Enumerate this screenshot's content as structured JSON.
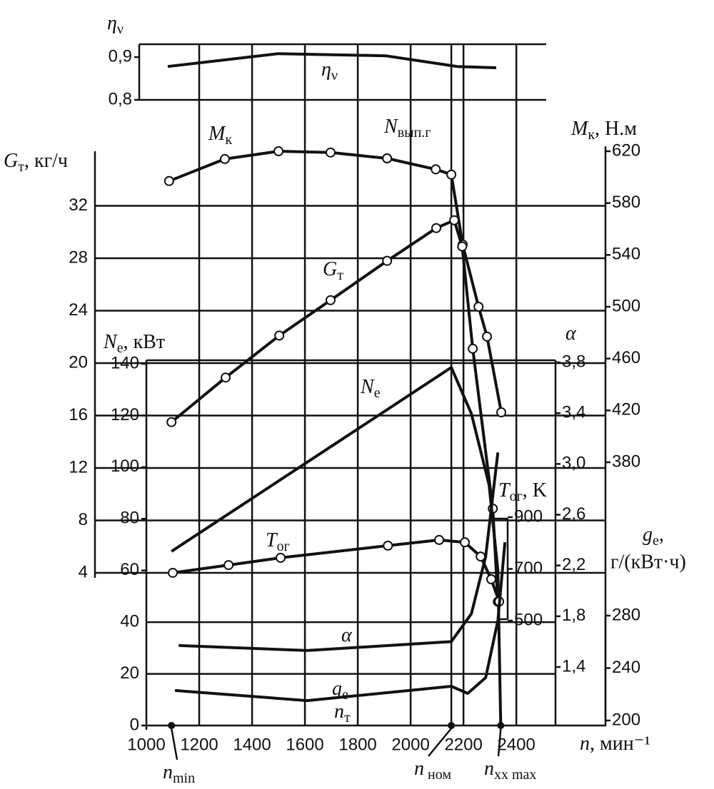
{
  "chart_data": {
    "type": "line",
    "x_label": "n, мин⁻¹",
    "xlim": [
      1000,
      2740
    ],
    "xticks": [
      1000,
      1200,
      1400,
      1600,
      1800,
      2000,
      2200,
      2400
    ],
    "grid": true,
    "axes": {
      "eta": {
        "label": "ην",
        "ylim": [
          0.8,
          0.9
        ],
        "yticks": [
          {
            "value": 0.8,
            "label": "0,8"
          },
          {
            "value": 0.9,
            "label": "0,9"
          }
        ]
      },
      "G": {
        "label": "Gт, кг/ч",
        "ylim": [
          4,
          36
        ],
        "yticks": [
          4,
          8,
          12,
          16,
          20,
          24,
          28,
          32
        ]
      },
      "Ne": {
        "label": "Ne, кВт",
        "ylim": [
          0,
          140
        ],
        "yticks": [
          0,
          20,
          40,
          60,
          80,
          100,
          120,
          140
        ]
      },
      "M": {
        "label": "Mк, Н.м",
        "ylim": [
          380,
          620
        ],
        "yticks": [
          380,
          420,
          460,
          500,
          540,
          580,
          620
        ]
      },
      "alpha": {
        "label": "α",
        "ylim": [
          1.4,
          3.8
        ],
        "yticks": [
          {
            "value": 1.4,
            "label": "1,4"
          },
          {
            "value": 1.8,
            "label": "1,8"
          },
          {
            "value": 2.2,
            "label": "2,2"
          },
          {
            "value": 2.6,
            "label": "2,6"
          },
          {
            "value": 3.0,
            "label": "3,0"
          },
          {
            "value": 3.4,
            "label": "3,4"
          },
          {
            "value": 3.8,
            "label": "3,8"
          }
        ]
      },
      "T": {
        "label": "Tог, K",
        "ylim": [
          500,
          900
        ],
        "yticks": [
          500,
          700,
          900
        ]
      },
      "ge": {
        "label": [
          "ge,",
          "г/(кВт·ч)"
        ],
        "ylim": [
          200,
          280
        ],
        "yticks": [
          200,
          240,
          280
        ]
      }
    },
    "series": [
      {
        "name": "Mк",
        "axis": "M",
        "color": "#111111",
        "markers": true,
        "x": [
          1086,
          1297,
          1500,
          1697,
          1911,
          2095,
          2154,
          2197,
          2257,
          2289,
          2343
        ],
        "values": [
          597,
          614,
          620,
          619,
          614.5,
          606,
          602,
          548,
          500,
          477,
          418.5
        ]
      },
      {
        "name": "Gт",
        "axis": "G",
        "color": "#111111",
        "markers": true,
        "x": [
          1095,
          1300,
          1503,
          1697,
          1911,
          2097,
          2165,
          2195,
          2235,
          2311,
          2330
        ],
        "values": [
          15.5,
          18.9,
          22.1,
          24.8,
          27.8,
          30.3,
          30.9,
          28.9,
          21.1,
          8.9,
          1.8
        ]
      },
      {
        "name": "Ne",
        "axis": "Ne",
        "color": "#111111",
        "markers": false,
        "x": [
          1095,
          2154,
          2230,
          2297,
          2330,
          2341
        ],
        "values": [
          67.4,
          138.6,
          120.7,
          93.1,
          60,
          0
        ]
      },
      {
        "name": "Tог",
        "axis": "T",
        "color": "#111111",
        "markers": true,
        "x": [
          1100,
          1311,
          1508,
          1914,
          2108,
          2205,
          2265,
          2305,
          2335
        ],
        "values": [
          685,
          715,
          743,
          790,
          812,
          803,
          748,
          660,
          574
        ]
      },
      {
        "name": "α",
        "axis": "alpha",
        "color": "#111111",
        "markers": false,
        "x": [
          1122,
          1608,
          2154,
          2230,
          2284,
          2330
        ],
        "values": [
          1.57,
          1.53,
          1.6,
          1.82,
          2.27,
          3.09
        ]
      },
      {
        "name": "ge",
        "axis": "ge",
        "color": "#111111",
        "markers": false,
        "x": [
          1108,
          1608,
          2154,
          2216,
          2284,
          2330,
          2357
        ],
        "values": [
          222.9,
          215.2,
          226.1,
          220.7,
          232.7,
          276.2,
          336
        ]
      },
      {
        "name": "ην",
        "axis": "eta",
        "color": "#111111",
        "markers": false,
        "x": [
          1081,
          1500,
          1905,
          2176,
          2324
        ],
        "values": [
          0.878,
          0.908,
          0.903,
          0.878,
          0.875
        ]
      }
    ],
    "regulator": {
      "label": "Nвып.г",
      "value": 2154
    },
    "x_markers": [
      {
        "name": "nmin",
        "value": 1095
      },
      {
        "name": "n ном",
        "value": 2154
      },
      {
        "name": "nxx max",
        "value": 2341
      }
    ],
    "annotations": [
      "nт"
    ]
  }
}
